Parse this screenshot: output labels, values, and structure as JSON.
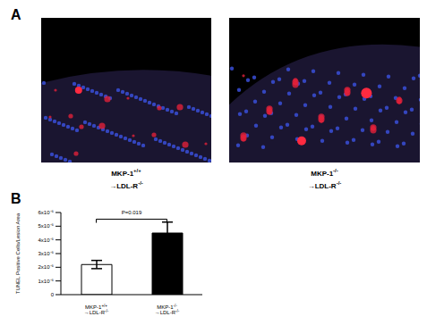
{
  "panel_labels": [
    "A",
    "B"
  ],
  "image_captions": [
    "MKP-1+/+ →LDL-R-/-",
    "MKP-1-/- →LDL-R-/-"
  ],
  "chart_data": {
    "type": "bar",
    "y_label": "TUNEL Positive Cells/Lesion Area",
    "categories": [
      "MKP-1+/+ →LDL-R-/-",
      "MKP-1-/- →LDL-R-/-"
    ],
    "values": [
      2.2e-05,
      4.5e-05
    ],
    "errors": [
      3e-06,
      8e-06
    ],
    "colors": [
      "#ffffff",
      "#000000"
    ],
    "ylim": [
      0,
      6e-05
    ],
    "yticks": [
      0,
      {
        "value": 1e-05,
        "label": "1x10⁻⁵"
      },
      {
        "value": 2e-05,
        "label": "2x10⁻⁵"
      },
      {
        "value": 3e-05,
        "label": "3x10⁻⁵"
      },
      {
        "value": 4e-05,
        "label": "4x10⁻⁵"
      },
      {
        "value": 5e-05,
        "label": "5x10⁻⁵"
      },
      {
        "value": 6e-05,
        "label": "6x10⁻⁵"
      }
    ],
    "annotations": [
      {
        "text": "P=0.019"
      }
    ],
    "grid": false
  }
}
